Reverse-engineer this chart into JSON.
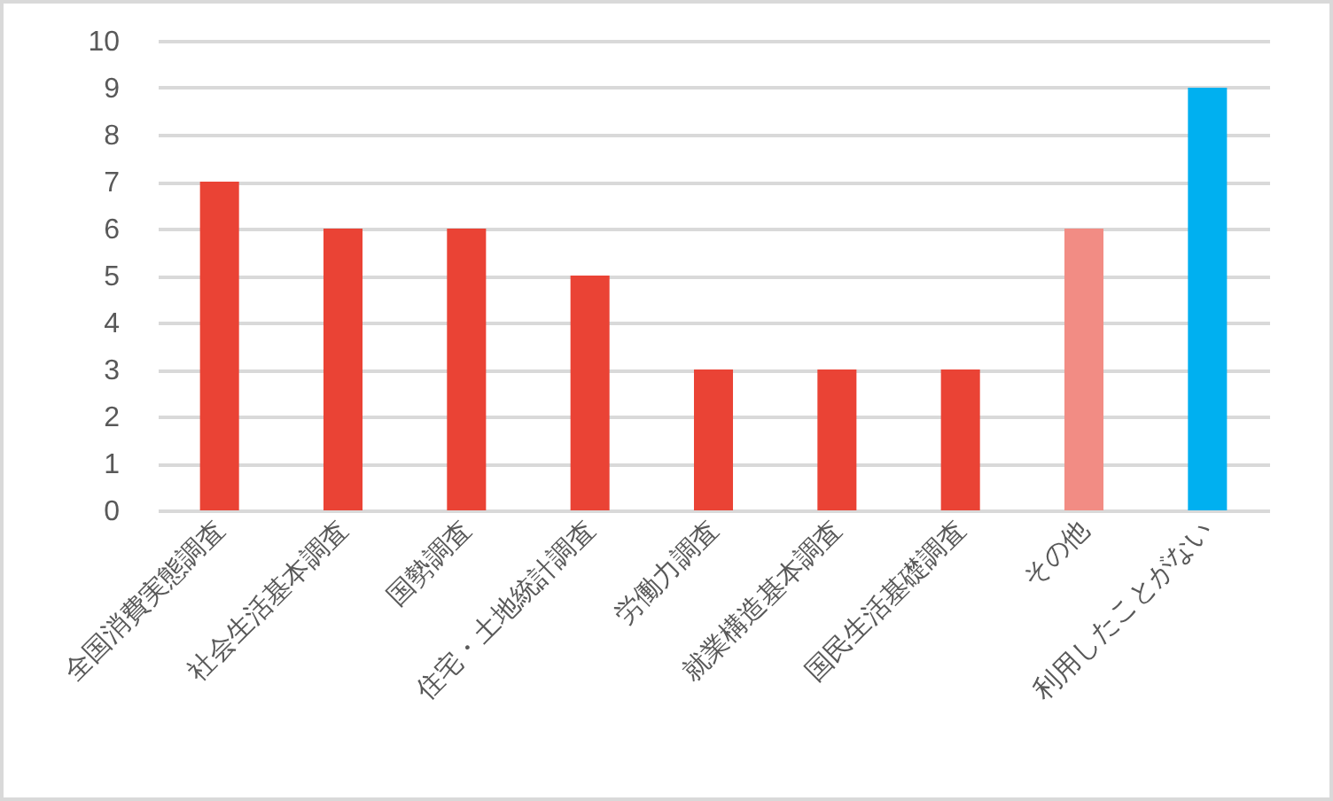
{
  "chart_data": {
    "type": "bar",
    "categories": [
      "全国消費実態調査",
      "社会生活基本調査",
      "国勢調査",
      "住宅・土地統計調査",
      "労働力調査",
      "就業構造基本調査",
      "国民生活基礎調査",
      "その他",
      "利用したことがない"
    ],
    "values": [
      7,
      6,
      6,
      5,
      3,
      3,
      3,
      6,
      9
    ],
    "colors": [
      "#ea4335",
      "#ea4335",
      "#ea4335",
      "#ea4335",
      "#ea4335",
      "#ea4335",
      "#ea4335",
      "#f28c84",
      "#00b0f0"
    ],
    "ylim": [
      0,
      10
    ],
    "yticks": [
      0,
      1,
      2,
      3,
      4,
      5,
      6,
      7,
      8,
      9,
      10
    ],
    "grid": "y"
  }
}
